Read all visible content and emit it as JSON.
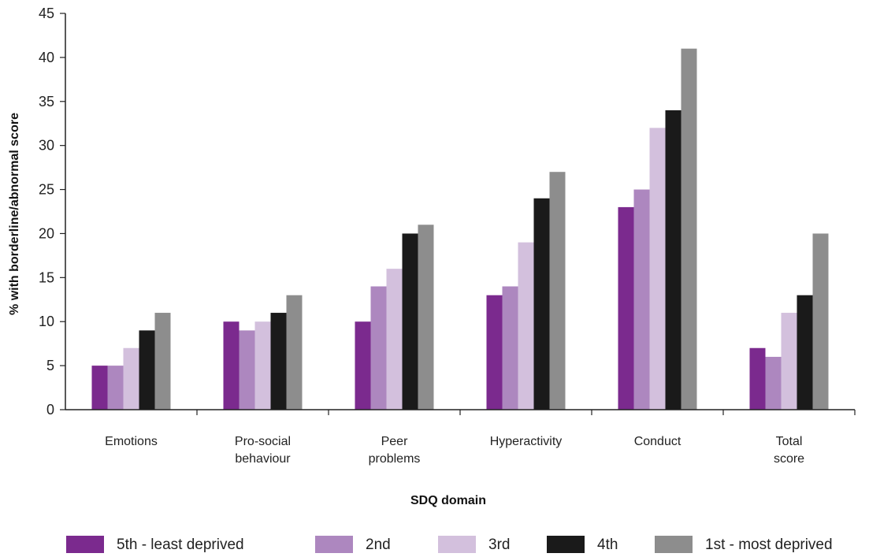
{
  "chart_data": {
    "type": "bar",
    "title": "",
    "xlabel": "SDQ domain",
    "ylabel": "% with borderline/abnormal score",
    "ylim": [
      0,
      45
    ],
    "yticks": [
      "0",
      "5",
      "10",
      "15",
      "20",
      "25",
      "30",
      "35",
      "40",
      "45"
    ],
    "grid": false,
    "legend_position": "bottom",
    "categories": [
      [
        "Emotions"
      ],
      [
        "Pro-social",
        "behaviour"
      ],
      [
        "Peer",
        "problems"
      ],
      [
        "Hyperactivity"
      ],
      [
        "Conduct"
      ],
      [
        "Total",
        "score"
      ]
    ],
    "series": [
      {
        "name": "5th - least deprived",
        "color": "#7b2a8e",
        "values": [
          5,
          10,
          10,
          13,
          23,
          7
        ]
      },
      {
        "name": "2nd",
        "color": "#ad87bf",
        "values": [
          5,
          9,
          14,
          14,
          25,
          6
        ]
      },
      {
        "name": "3rd",
        "color": "#d3c0dd",
        "values": [
          7,
          10,
          16,
          19,
          32,
          11
        ]
      },
      {
        "name": "4th",
        "color": "#1a1a1a",
        "values": [
          9,
          11,
          20,
          24,
          34,
          13
        ]
      },
      {
        "name": "1st - most deprived",
        "color": "#8d8d8d",
        "values": [
          11,
          13,
          21,
          27,
          41,
          20
        ]
      }
    ]
  }
}
